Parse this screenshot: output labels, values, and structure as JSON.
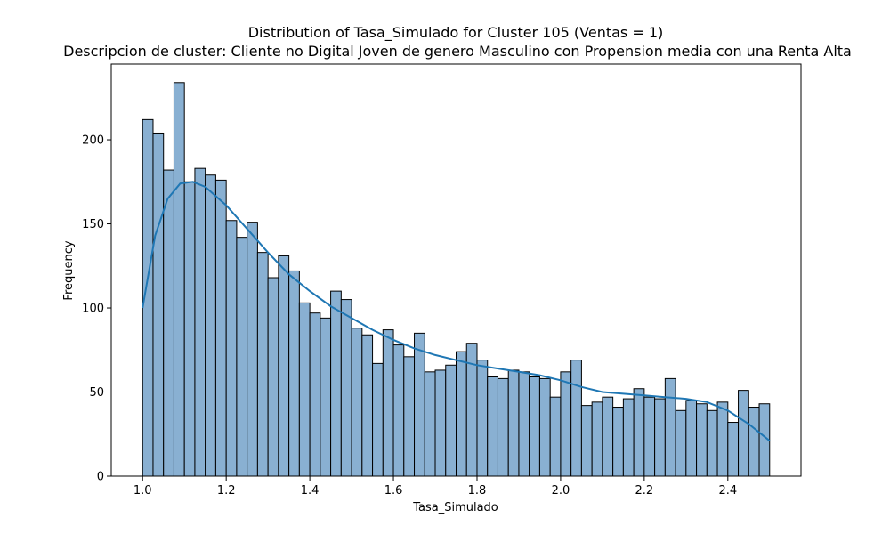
{
  "chart_data": {
    "type": "bar",
    "title": "Distribution of Tasa_Simulado for Cluster 105 (Ventas = 1)",
    "subtitle": "Descripcion de cluster: Cliente no Digital Joven de genero Masculino con Propension media con una Renta Alta",
    "xlabel": "Tasa_Simulado",
    "ylabel": "Frequency",
    "xlim": [
      0.925,
      2.575
    ],
    "ylim": [
      0,
      245
    ],
    "xticks": [
      "1.0",
      "1.2",
      "1.4",
      "1.6",
      "1.8",
      "2.0",
      "2.2",
      "2.4"
    ],
    "yticks": [
      "0",
      "50",
      "100",
      "150",
      "200"
    ],
    "bin_range": [
      1.0,
      2.5
    ],
    "counts": [
      212,
      204,
      182,
      234,
      175,
      183,
      179,
      176,
      152,
      142,
      151,
      133,
      118,
      131,
      122,
      103,
      97,
      94,
      110,
      105,
      88,
      84,
      67,
      87,
      78,
      71,
      85,
      62,
      63,
      66,
      74,
      79,
      69,
      59,
      58,
      63,
      62,
      59,
      58,
      47,
      62,
      69,
      42,
      44,
      47,
      41,
      46,
      52,
      47,
      46,
      58,
      39,
      45,
      43,
      39,
      44,
      32,
      51,
      41,
      43
    ],
    "kde": {
      "x": [
        1.0,
        1.03,
        1.06,
        1.09,
        1.12,
        1.15,
        1.2,
        1.25,
        1.3,
        1.35,
        1.4,
        1.45,
        1.5,
        1.55,
        1.6,
        1.65,
        1.7,
        1.75,
        1.8,
        1.85,
        1.9,
        1.95,
        2.0,
        2.05,
        2.1,
        2.15,
        2.2,
        2.25,
        2.3,
        2.35,
        2.4,
        2.45,
        2.5
      ],
      "y": [
        100,
        143,
        165,
        174,
        175,
        172,
        161,
        147,
        133,
        120,
        110,
        101,
        94,
        87,
        81,
        76,
        72,
        69,
        66,
        64,
        62,
        60,
        57,
        53,
        50,
        49,
        48,
        47,
        46,
        44,
        39,
        31,
        21
      ]
    },
    "bar_color": "#89b0d2",
    "bar_edge_color": "#000000",
    "line_color": "#1f77b4",
    "grid": false,
    "legend": "none"
  }
}
